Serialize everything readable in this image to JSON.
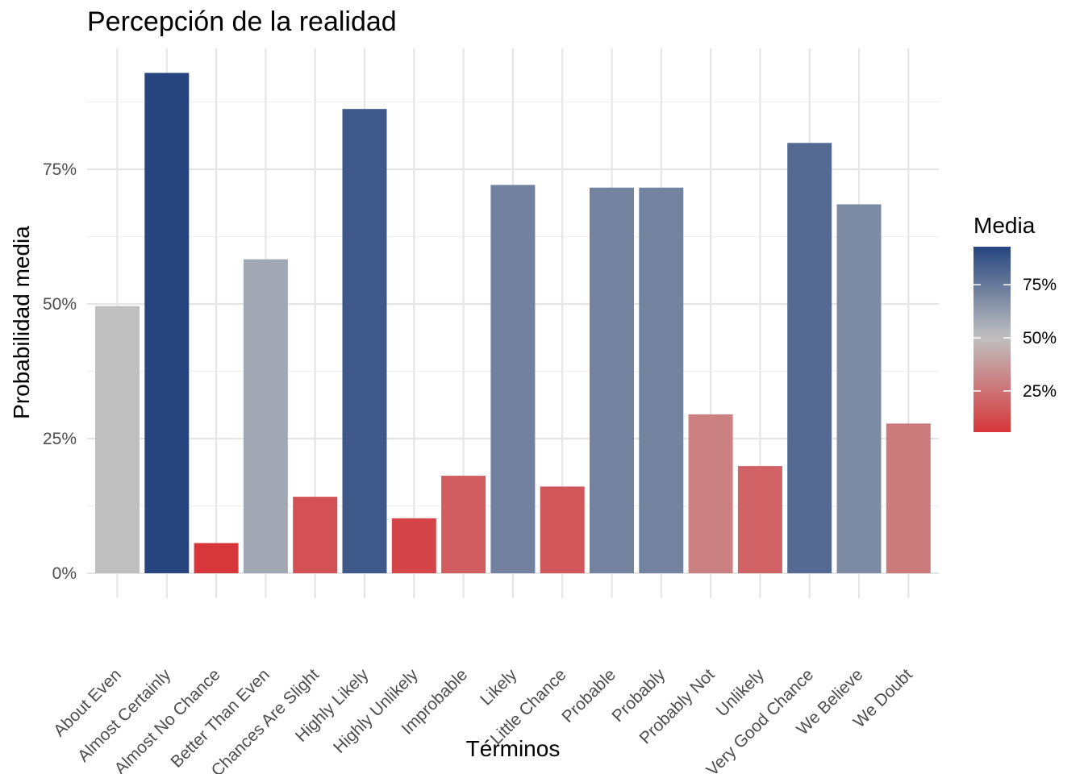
{
  "chart_data": {
    "type": "bar",
    "title": "Percepción de la realidad",
    "xlabel": "Términos",
    "ylabel": "Probabilidad media",
    "categories": [
      "About Even",
      "Almost Certainly",
      "Almost No Chance",
      "Better Than Even",
      "Chances Are Slight",
      "Highly Likely",
      "Highly Unlikely",
      "Improbable",
      "Likely",
      "Little Chance",
      "Probable",
      "Probably",
      "Probably Not",
      "Unlikely",
      "Very Good Chance",
      "We Believe",
      "We Doubt"
    ],
    "values": [
      49.6,
      92.9,
      5.6,
      58.3,
      14.2,
      86.2,
      10.2,
      18.1,
      72.1,
      16.1,
      71.6,
      71.6,
      29.5,
      19.9,
      79.9,
      68.5,
      27.8
    ],
    "ylim": [
      0,
      100
    ],
    "yticks": [
      0,
      25,
      50,
      75
    ],
    "ytick_labels": [
      "0%",
      "25%",
      "50%",
      "75%"
    ],
    "grid": true,
    "legend": {
      "title": "Media",
      "placement": "right",
      "ticks": [
        25,
        50,
        75
      ],
      "tick_labels": [
        "25%",
        "50%",
        "75%"
      ],
      "min": 5.6,
      "max": 92.9
    },
    "colors": {
      "low": "#d7363a",
      "mid": "#c0c0c0",
      "high": "#26457f"
    }
  }
}
